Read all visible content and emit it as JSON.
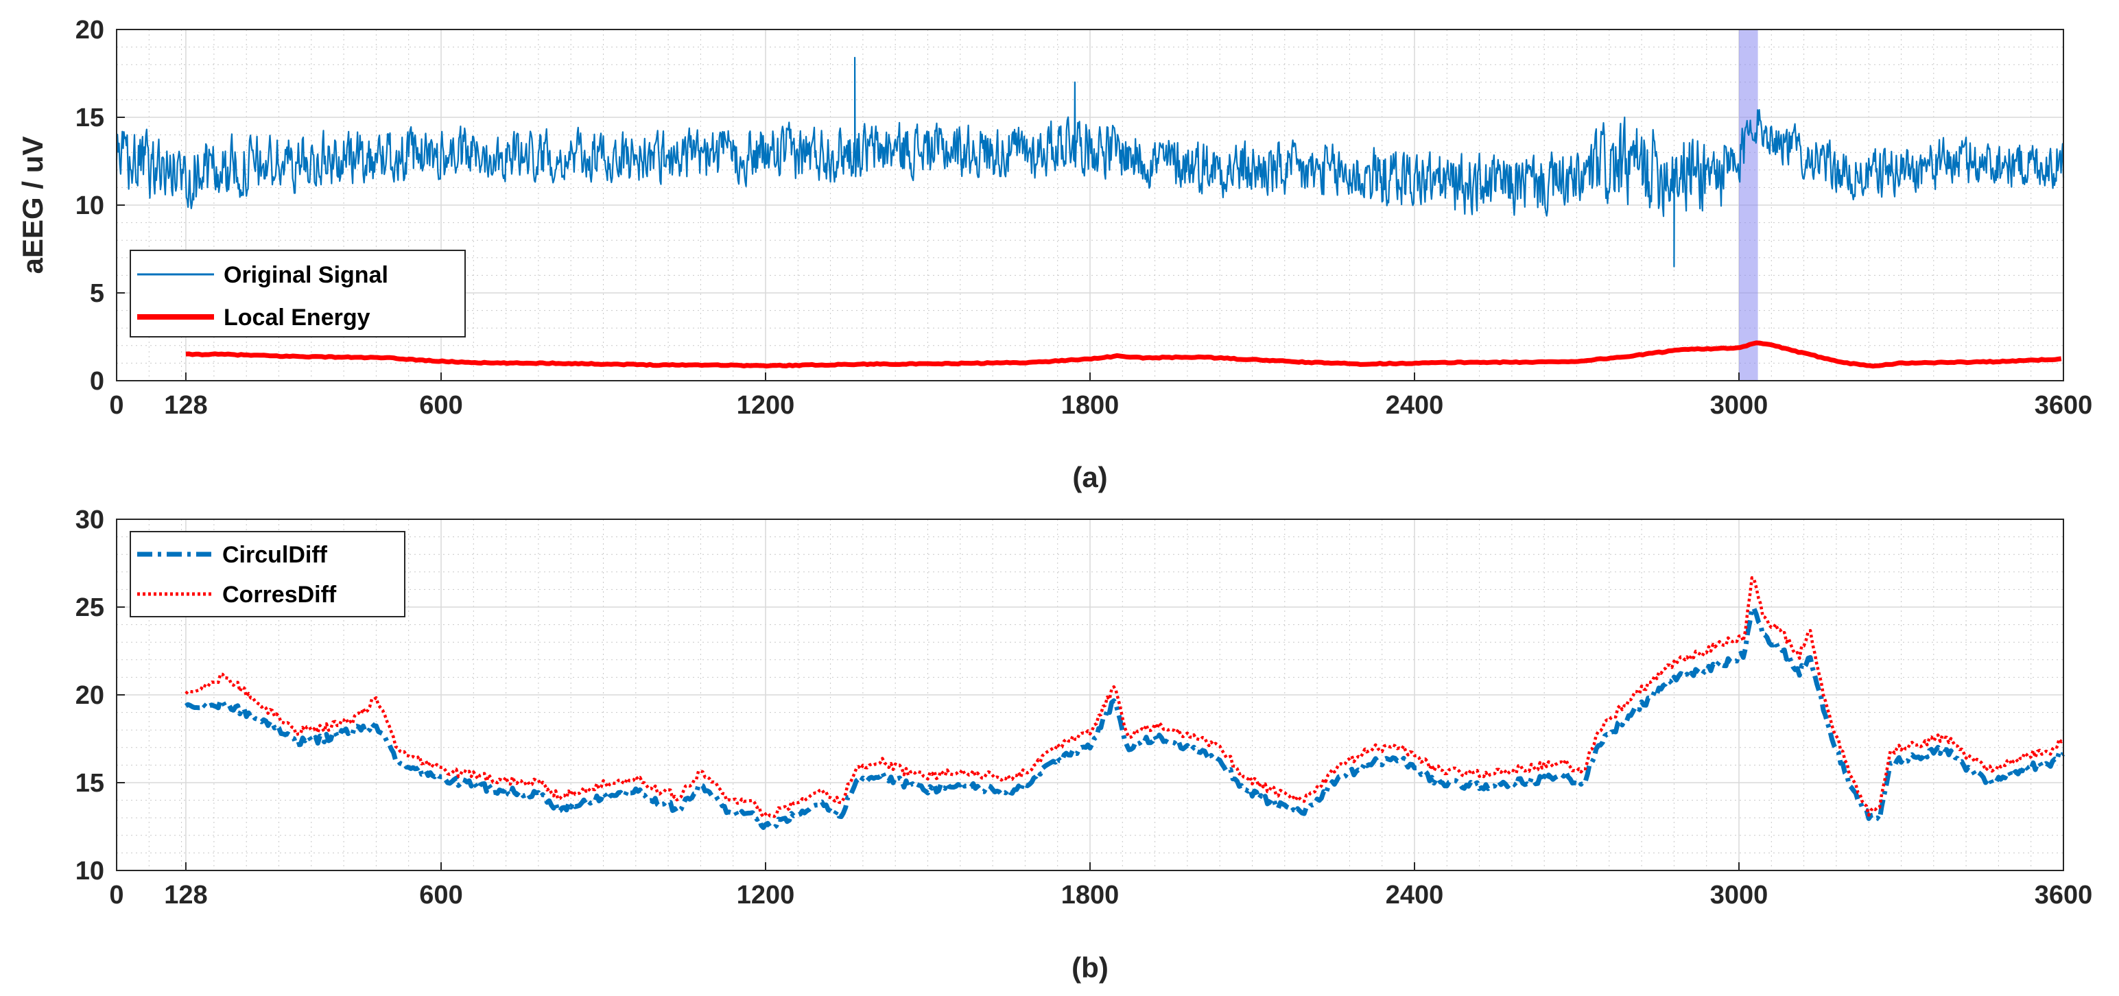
{
  "chart_data": [
    {
      "type": "line",
      "panel_label": "(a)",
      "ylabel": "aEEG / uV",
      "xlim": [
        0,
        3600
      ],
      "ylim": [
        0,
        20
      ],
      "xticks": [
        0,
        128,
        600,
        1200,
        1800,
        2400,
        3000,
        3600
      ],
      "yticks": [
        0,
        5,
        10,
        15,
        20
      ],
      "grid": "major and minor (dotted)",
      "legend_position": "lower-left",
      "highlight_band": {
        "x_start": 3000,
        "x_end": 3035,
        "color": "#8a8af0"
      },
      "series": [
        {
          "name": "Original Signal",
          "color": "#0072bd",
          "style": "solid-thin",
          "x_start": 0,
          "x_end": 3600,
          "envelope_x": [
            0,
            120,
            300,
            500,
            700,
            900,
            1100,
            1300,
            1500,
            1700,
            1760,
            1900,
            2100,
            2300,
            2500,
            2700,
            2750,
            2900,
            3000,
            3020,
            3060,
            3200,
            3250,
            3400,
            3600
          ],
          "envelope_mid": [
            12.6,
            11.8,
            12.4,
            12.8,
            12.9,
            12.7,
            12.8,
            13.0,
            13.2,
            13.0,
            13.8,
            12.6,
            12.0,
            11.7,
            11.2,
            11.2,
            12.2,
            12.0,
            11.8,
            15.0,
            14.0,
            11.6,
            11.8,
            12.5,
            12.3
          ],
          "envelope_amp": [
            1.8,
            2.0,
            1.7,
            1.6,
            1.5,
            1.5,
            1.6,
            1.7,
            1.6,
            1.6,
            1.8,
            1.6,
            1.7,
            1.8,
            1.8,
            1.9,
            2.6,
            2.6,
            2.2,
            1.2,
            1.4,
            1.4,
            1.5,
            1.5,
            1.5
          ],
          "spikes": [
            {
              "x": 1365,
              "y": 18.4
            },
            {
              "x": 1772,
              "y": 17.0
            },
            {
              "x": 2880,
              "y": 6.5
            }
          ]
        },
        {
          "name": "Local Energy",
          "color": "#ff0000",
          "style": "solid-thick",
          "x": [
            128,
            200,
            300,
            400,
            500,
            600,
            700,
            800,
            900,
            1000,
            1100,
            1200,
            1300,
            1400,
            1500,
            1600,
            1700,
            1800,
            1850,
            1900,
            2000,
            2100,
            2200,
            2300,
            2400,
            2500,
            2600,
            2700,
            2800,
            2900,
            3000,
            3030,
            3060,
            3100,
            3150,
            3200,
            3250,
            3300,
            3400,
            3500,
            3600
          ],
          "y": [
            1.5,
            1.5,
            1.4,
            1.35,
            1.3,
            1.1,
            1.0,
            1.0,
            0.95,
            0.9,
            0.9,
            0.85,
            0.9,
            0.95,
            0.95,
            1.0,
            1.05,
            1.25,
            1.4,
            1.3,
            1.35,
            1.2,
            1.05,
            0.95,
            1.0,
            1.05,
            1.05,
            1.1,
            1.4,
            1.8,
            1.85,
            2.15,
            2.05,
            1.7,
            1.35,
            1.0,
            0.85,
            1.0,
            1.05,
            1.1,
            1.25
          ]
        }
      ]
    },
    {
      "type": "line",
      "panel_label": "(b)",
      "ylabel": "",
      "xlim": [
        0,
        3600
      ],
      "ylim": [
        10,
        30
      ],
      "xticks": [
        0,
        128,
        600,
        1200,
        1800,
        2400,
        3000,
        3600
      ],
      "yticks": [
        10,
        15,
        20,
        25,
        30
      ],
      "grid": "major and minor (dotted)",
      "legend_position": "top-left",
      "series": [
        {
          "name": "CirculDiff",
          "color": "#0072bd",
          "style": "dash-dot-thick",
          "x": [
            128,
            200,
            280,
            330,
            380,
            440,
            480,
            520,
            560,
            620,
            700,
            780,
            820,
            900,
            960,
            1000,
            1040,
            1080,
            1130,
            1180,
            1200,
            1260,
            1300,
            1340,
            1370,
            1420,
            1460,
            1500,
            1560,
            1620,
            1660,
            1700,
            1760,
            1800,
            1830,
            1845,
            1870,
            1920,
            1990,
            2040,
            2080,
            2120,
            2170,
            2200,
            2260,
            2320,
            2370,
            2440,
            2500,
            2560,
            2620,
            2680,
            2710,
            2740,
            2800,
            2880,
            2940,
            2990,
            3010,
            3025,
            3045,
            3080,
            3110,
            3130,
            3150,
            3165,
            3200,
            3240,
            3260,
            3280,
            3320,
            3380,
            3420,
            3460,
            3500,
            3540,
            3580,
            3600
          ],
          "y": [
            19.3,
            19.5,
            18.4,
            17.3,
            17.5,
            18.0,
            18.2,
            16.2,
            15.7,
            15.1,
            14.6,
            14.3,
            13.5,
            14.2,
            14.6,
            13.9,
            13.5,
            14.9,
            13.4,
            13.1,
            12.4,
            13.3,
            13.9,
            13.1,
            15.2,
            15.4,
            14.9,
            14.6,
            14.9,
            14.6,
            14.4,
            15.4,
            16.7,
            17.0,
            18.9,
            19.6,
            16.9,
            17.6,
            16.9,
            16.3,
            14.8,
            14.1,
            13.4,
            13.4,
            15.2,
            16.1,
            16.4,
            15.1,
            14.8,
            14.9,
            15.1,
            15.4,
            14.8,
            17.2,
            18.9,
            20.9,
            21.4,
            22.0,
            22.3,
            25.2,
            23.3,
            22.6,
            21.2,
            22.2,
            20.1,
            18.2,
            15.2,
            13.1,
            12.8,
            16.1,
            16.4,
            16.9,
            15.9,
            15.1,
            15.5,
            15.9,
            16.1,
            16.8
          ]
        },
        {
          "name": "CorresDiff",
          "color": "#ff0000",
          "style": "dotted-thick",
          "x": [
            128,
            200,
            280,
            330,
            380,
            440,
            480,
            520,
            560,
            620,
            700,
            780,
            820,
            900,
            960,
            1000,
            1040,
            1080,
            1130,
            1180,
            1200,
            1260,
            1300,
            1340,
            1370,
            1420,
            1460,
            1500,
            1560,
            1620,
            1660,
            1700,
            1760,
            1800,
            1830,
            1845,
            1870,
            1920,
            1990,
            2040,
            2080,
            2120,
            2170,
            2200,
            2260,
            2320,
            2370,
            2440,
            2500,
            2560,
            2620,
            2680,
            2710,
            2740,
            2800,
            2880,
            2940,
            2990,
            3010,
            3025,
            3045,
            3080,
            3110,
            3130,
            3150,
            3165,
            3200,
            3240,
            3260,
            3280,
            3320,
            3380,
            3420,
            3460,
            3500,
            3540,
            3580,
            3600
          ],
          "y": [
            20.0,
            21.1,
            19.1,
            17.9,
            18.1,
            18.6,
            19.8,
            16.9,
            16.3,
            15.6,
            15.2,
            15.0,
            14.2,
            14.9,
            15.3,
            14.6,
            14.2,
            15.7,
            14.1,
            13.8,
            13.0,
            14.0,
            14.6,
            13.9,
            15.9,
            16.2,
            15.6,
            15.4,
            15.6,
            15.4,
            15.2,
            16.1,
            17.5,
            17.8,
            19.6,
            20.4,
            17.6,
            18.3,
            17.6,
            17.1,
            15.5,
            14.8,
            14.1,
            14.1,
            15.9,
            16.9,
            17.1,
            15.8,
            15.5,
            15.6,
            15.9,
            16.1,
            15.5,
            18.0,
            19.8,
            21.8,
            22.5,
            23.2,
            23.2,
            27.0,
            24.3,
            23.6,
            22.1,
            23.8,
            21.0,
            19.0,
            15.9,
            13.3,
            13.5,
            16.8,
            17.1,
            17.6,
            16.6,
            15.8,
            16.2,
            16.6,
            16.8,
            17.6
          ]
        }
      ]
    }
  ]
}
